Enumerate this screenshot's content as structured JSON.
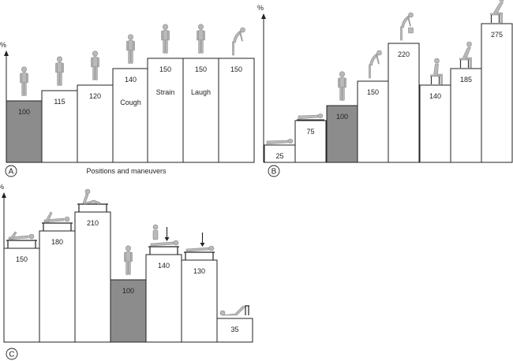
{
  "y_unit": "%",
  "colors": {
    "reference": "#8c8c8c",
    "normal": "#ffffff",
    "stroke": "#222222"
  },
  "panels": [
    {
      "id": "A",
      "label": "A",
      "caption": "Positions and maneuvers",
      "bars": [
        {
          "value": "100",
          "text": "",
          "reference": true,
          "figure": "standing"
        },
        {
          "value": "115",
          "text": "",
          "reference": false,
          "figure": "standing"
        },
        {
          "value": "120",
          "text": "",
          "reference": false,
          "figure": "standing"
        },
        {
          "value": "140",
          "text": "Cough",
          "reference": false,
          "figure": "standing"
        },
        {
          "value": "150",
          "text": "Strain",
          "reference": false,
          "figure": "standing"
        },
        {
          "value": "150",
          "text": "Laugh",
          "reference": false,
          "figure": "standing"
        },
        {
          "value": "150",
          "text": "",
          "reference": false,
          "figure": "bending"
        }
      ]
    },
    {
      "id": "B",
      "label": "B",
      "caption": "",
      "bars": [
        {
          "value": "25",
          "text": "",
          "reference": false,
          "figure": "lying-supine"
        },
        {
          "value": "75",
          "text": "",
          "reference": false,
          "figure": "lying-side"
        },
        {
          "value": "100",
          "text": "",
          "reference": true,
          "figure": "standing"
        },
        {
          "value": "150",
          "text": "",
          "reference": false,
          "figure": "bending"
        },
        {
          "value": "220",
          "text": "",
          "reference": false,
          "figure": "lifting"
        },
        {
          "value": "140",
          "text": "",
          "reference": false,
          "figure": "sitting"
        },
        {
          "value": "185",
          "text": "",
          "reference": false,
          "figure": "sitting-leaning"
        },
        {
          "value": "275",
          "text": "",
          "reference": false,
          "figure": "sitting-lifting"
        }
      ]
    },
    {
      "id": "C",
      "label": "C",
      "caption": "",
      "bars": [
        {
          "value": "150",
          "text": "",
          "reference": false,
          "figure": "table-exercise"
        },
        {
          "value": "180",
          "text": "",
          "reference": false,
          "figure": "table-exercise"
        },
        {
          "value": "210",
          "text": "",
          "reference": false,
          "figure": "table-situp"
        },
        {
          "value": "100",
          "text": "",
          "reference": true,
          "figure": "standing"
        },
        {
          "value": "140",
          "text": "",
          "reference": false,
          "figure": "table-arrow"
        },
        {
          "value": "130",
          "text": "",
          "reference": false,
          "figure": "table-arrow"
        },
        {
          "value": "35",
          "text": "",
          "reference": false,
          "figure": "table-lying"
        }
      ]
    }
  ]
}
